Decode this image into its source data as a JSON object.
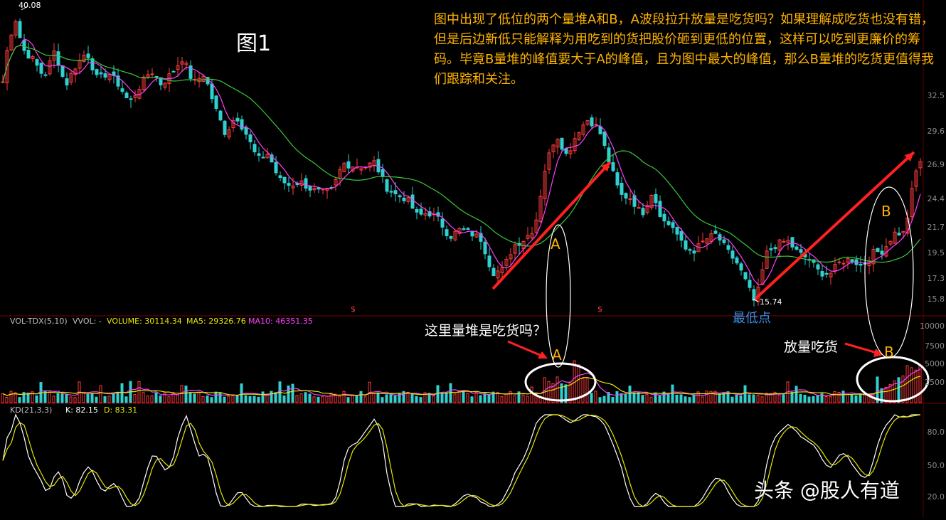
{
  "chart_data": [
    {
      "type": "candlestick",
      "title": "图1",
      "ylim": [
        15,
        40.5
      ],
      "y_ticks": [
        "32.5",
        "29.6",
        "26.9",
        "24.4",
        "21.7",
        "19.5",
        "17.3",
        "15.8"
      ],
      "high_label": "40.08",
      "low_label": "15.74",
      "series": [
        {
          "name": "MA-short",
          "color": "#ff40ff"
        },
        {
          "name": "MA-long",
          "color": "#3cc83c"
        }
      ],
      "anchor_prices": [
        [
          0,
          33.0
        ],
        [
          10,
          37.2
        ],
        [
          20,
          38.9
        ],
        [
          30,
          36.5
        ],
        [
          45,
          35.6
        ],
        [
          60,
          34.2
        ],
        [
          75,
          36.4
        ],
        [
          90,
          33.5
        ],
        [
          105,
          35.2
        ],
        [
          120,
          36.3
        ],
        [
          135,
          34.0
        ],
        [
          150,
          34.6
        ],
        [
          165,
          33.6
        ],
        [
          180,
          32.1
        ],
        [
          195,
          33.5
        ],
        [
          210,
          34.8
        ],
        [
          225,
          33.6
        ],
        [
          240,
          34.6
        ],
        [
          255,
          35.8
        ],
        [
          270,
          33.7
        ],
        [
          285,
          34.5
        ],
        [
          300,
          31.8
        ],
        [
          315,
          29.6
        ],
        [
          330,
          31.1
        ],
        [
          345,
          29.5
        ],
        [
          360,
          27.5
        ],
        [
          375,
          28.0
        ],
        [
          390,
          25.9
        ],
        [
          405,
          25.4
        ],
        [
          420,
          25.7
        ],
        [
          435,
          25.1
        ],
        [
          450,
          24.8
        ],
        [
          465,
          25.0
        ],
        [
          480,
          27.2
        ],
        [
          495,
          27.0
        ],
        [
          510,
          26.9
        ],
        [
          525,
          27.3
        ],
        [
          540,
          25.3
        ],
        [
          555,
          24.6
        ],
        [
          570,
          24.3
        ],
        [
          585,
          22.9
        ],
        [
          600,
          23.2
        ],
        [
          615,
          22.6
        ],
        [
          630,
          21.2
        ],
        [
          645,
          21.8
        ],
        [
          660,
          21.5
        ],
        [
          675,
          21.0
        ],
        [
          690,
          18.3
        ],
        [
          705,
          18.5
        ],
        [
          720,
          20.5
        ],
        [
          735,
          21.0
        ],
        [
          750,
          22.0
        ],
        [
          765,
          27.0
        ],
        [
          780,
          29.6
        ],
        [
          795,
          27.8
        ],
        [
          810,
          29.8
        ],
        [
          825,
          30.8
        ],
        [
          840,
          30.0
        ],
        [
          855,
          27.2
        ],
        [
          870,
          24.6
        ],
        [
          885,
          24.4
        ],
        [
          900,
          23.0
        ],
        [
          915,
          24.9
        ],
        [
          930,
          22.5
        ],
        [
          945,
          22.0
        ],
        [
          960,
          20.2
        ],
        [
          975,
          20.1
        ],
        [
          990,
          21.0
        ],
        [
          1005,
          21.4
        ],
        [
          1020,
          20.1
        ],
        [
          1035,
          19.0
        ],
        [
          1050,
          17.1
        ],
        [
          1060,
          15.74
        ],
        [
          1075,
          19.8
        ],
        [
          1090,
          20.6
        ],
        [
          1105,
          20.9
        ],
        [
          1120,
          19.9
        ],
        [
          1135,
          19.4
        ],
        [
          1150,
          18.3
        ],
        [
          1165,
          18.2
        ],
        [
          1180,
          19.2
        ],
        [
          1195,
          19.4
        ],
        [
          1210,
          18.8
        ],
        [
          1225,
          19.9
        ],
        [
          1240,
          20.1
        ],
        [
          1255,
          21.5
        ],
        [
          1270,
          21.5
        ],
        [
          1280,
          24.9
        ],
        [
          1290,
          27.6
        ],
        [
          1298,
          26.8
        ]
      ],
      "annotations": {
        "note": "图中出现了低位的两个量堆A和B，A波段拉升放量是吃货吗？如果理解成吃货也没有错，但是后边新低只能解释为用吃到的货把股价砸到更低的位置，这样可以吃到更廉价的筹码。毕竟B量堆的峰值要大于A的峰值，且为图中最大的峰值，那么B量堆的吃货更值得我们跟踪和关注。",
        "letter_a": "A",
        "letter_b": "B",
        "lowest_point": "最低点",
        "marker": "$"
      }
    },
    {
      "type": "bar",
      "title": "VOL-TDX(5,10)",
      "vvol": "VVOL: -",
      "volume": "VOLUME: 30114.34",
      "ma5": "MA5: 29326.76",
      "ma10": "MA10: 46351.35",
      "y_ticks": [
        "10000",
        "7500",
        "5000",
        "2500"
      ],
      "ylim": [
        0,
        10500
      ],
      "series": [
        {
          "name": "VOLUME",
          "color": "#e04040"
        },
        {
          "name": "MA5",
          "color": "#ff40ff"
        },
        {
          "name": "MA10",
          "color": "#e8e800"
        }
      ],
      "annotations": {
        "question": "这里量堆是吃货吗？",
        "heavy": "放量吃货",
        "letter_a": "A",
        "letter_b": "B"
      }
    },
    {
      "type": "line",
      "title": "KD(21,3,3)",
      "k": "K: 82.15",
      "d": "D: 83.31",
      "y_ticks": [
        "80.0",
        "50.0",
        "20.0"
      ],
      "ylim": [
        0,
        100
      ],
      "series": [
        {
          "name": "K",
          "color": "#ffffff"
        },
        {
          "name": "D",
          "color": "#e8e800"
        }
      ]
    }
  ],
  "watermark": "头条 @股人有道",
  "colors": {
    "up": "#ff3c3c",
    "down": "#30d0d0",
    "arrow": "#ff2020",
    "annotation": "#ffb400"
  }
}
